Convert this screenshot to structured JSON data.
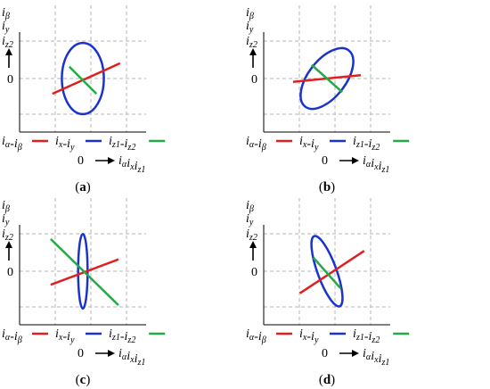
{
  "colors": {
    "alpha_beta": "#e02020",
    "x_y": "#1a33cc",
    "z1_z2": "#22aa44",
    "grid": "#b5b5b5",
    "axis": "#000000"
  },
  "axis_text": {
    "zero": "0",
    "y_axis_lines": [
      "iβ",
      "iy",
      "iz2"
    ],
    "x_axis_label": "iαixiz1"
  },
  "legend": [
    {
      "key": "alpha_beta",
      "label": "iα-iβ"
    },
    {
      "key": "x_y",
      "label": "ix-iy"
    },
    {
      "key": "z1_z2",
      "label": "iz1-iz2"
    }
  ],
  "panels": [
    {
      "caption": "(a)",
      "ellipse": {
        "cx": 0,
        "cy": 0,
        "rx": 0.62,
        "ry": 1.05,
        "rotate_deg": 0
      },
      "alpha_beta": {
        "from": [
          -0.9,
          -0.45
        ],
        "to": [
          1.1,
          0.45
        ]
      },
      "z1_z2": {
        "from": [
          -0.4,
          0.35
        ],
        "to": [
          0.4,
          -0.45
        ]
      }
    },
    {
      "caption": "(b)",
      "ellipse": {
        "cx": 0,
        "cy": 0,
        "rx": 0.55,
        "ry": 1.05,
        "rotate_deg": 38
      },
      "alpha_beta": {
        "from": [
          -1.0,
          -0.1
        ],
        "to": [
          1.0,
          0.1
        ]
      },
      "z1_z2": {
        "from": [
          -0.45,
          0.4
        ],
        "to": [
          0.45,
          -0.4
        ]
      }
    },
    {
      "caption": "(c)",
      "ellipse": {
        "cx": 0,
        "cy": 0,
        "rx": 0.14,
        "ry": 1.1,
        "rotate_deg": 0
      },
      "alpha_beta": {
        "from": [
          -0.95,
          -0.4
        ],
        "to": [
          1.05,
          0.35
        ]
      },
      "z1_z2": {
        "from": [
          -0.95,
          0.95
        ],
        "to": [
          1.05,
          -1.0
        ]
      }
    },
    {
      "caption": "(d)",
      "ellipse": {
        "cx": 0,
        "cy": 0,
        "rx": 0.28,
        "ry": 1.1,
        "rotate_deg": -20
      },
      "alpha_beta": {
        "from": [
          -0.8,
          -0.65
        ],
        "to": [
          1.1,
          0.6
        ]
      },
      "z1_z2": {
        "from": [
          -0.4,
          0.4
        ],
        "to": [
          0.4,
          -0.5
        ]
      }
    }
  ]
}
